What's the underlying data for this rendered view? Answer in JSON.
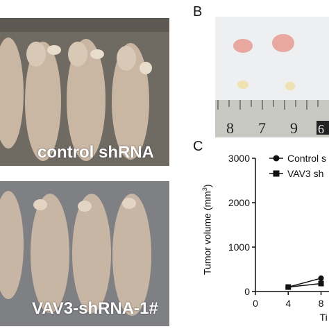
{
  "panels": {
    "b_label": "B",
    "c_label": "C"
  },
  "photos": {
    "top_caption": "control shRNA",
    "bottom_caption": "VAV3-shRNA-1#",
    "ruler_digits": [
      "8",
      "7",
      "9",
      "6"
    ]
  },
  "chart_data": {
    "type": "line",
    "ylabel_main": "Tumor volume (mm",
    "ylabel_unit": "3",
    "ylabel_close": ")",
    "xlabel_visible": "Ti",
    "xlim_visible": [
      0,
      8
    ],
    "ylim": [
      0,
      3000
    ],
    "x_ticks": [
      "0",
      "4",
      "8"
    ],
    "y_ticks": [
      "0",
      "1000",
      "2000",
      "3000"
    ],
    "series": [
      {
        "name": "Control s",
        "marker": "circle",
        "x": [
          4,
          8
        ],
        "values": [
          100,
          300
        ]
      },
      {
        "name": "VAV3 sh",
        "marker": "square",
        "x": [
          4,
          8
        ],
        "values": [
          100,
          180
        ]
      }
    ]
  }
}
